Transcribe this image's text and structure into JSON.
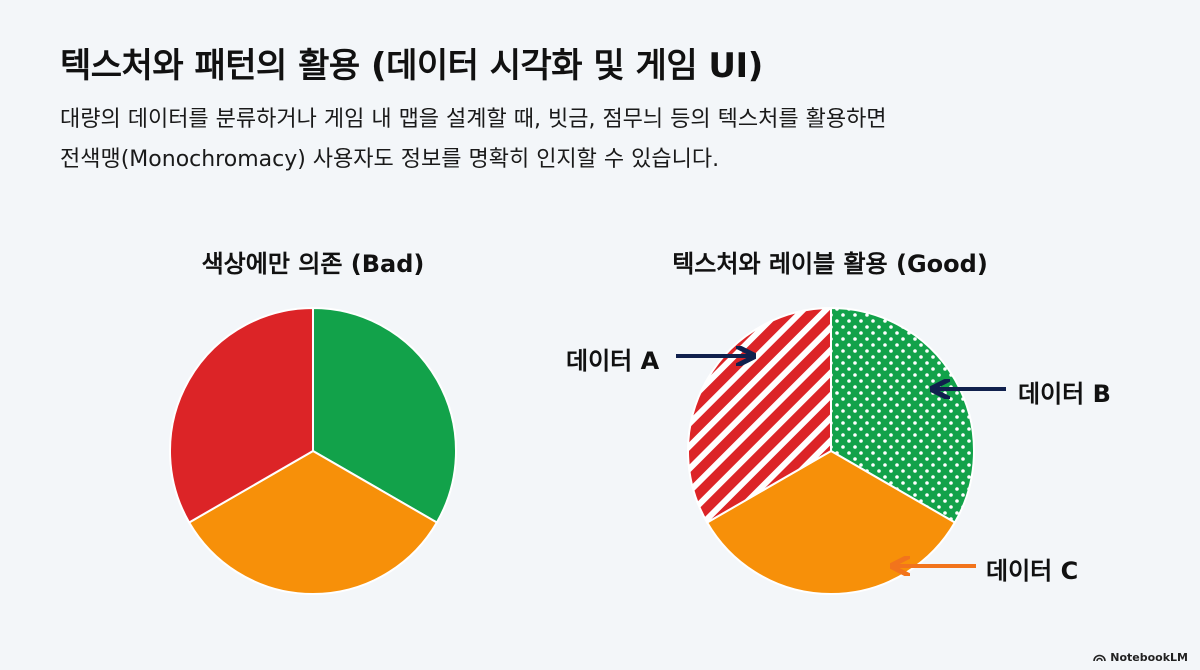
{
  "header": {
    "title": "텍스처와 패턴의 활용 (데이터 시각화 및 게임 UI)",
    "subtitle_line1": "대량의 데이터를 분류하거나 게임 내 맵을 설계할 때, 빗금, 점무늬 등의 텍스처를 활용하면",
    "subtitle_line2": "전색맹(Monochromacy) 사용자도 정보를 명확히 인지할 수 있습니다."
  },
  "chart_data": [
    {
      "type": "pie",
      "title": "색상에만 의존 (Bad)",
      "slices": [
        {
          "value": 33.3,
          "color": "#12a24a",
          "pattern": "none"
        },
        {
          "value": 33.3,
          "color": "#f79009",
          "pattern": "none"
        },
        {
          "value": 33.3,
          "color": "#dc2427",
          "pattern": "none"
        }
      ]
    },
    {
      "type": "pie",
      "title": "텍스처와 레이블 활용 (Good)",
      "slices": [
        {
          "label": "데이터 A",
          "value": 33.3,
          "color": "#dc2427",
          "pattern": "diagonal-stripes"
        },
        {
          "label": "데이터 B",
          "value": 33.3,
          "color": "#12a24a",
          "pattern": "dots"
        },
        {
          "label": "데이터 C",
          "value": 33.3,
          "color": "#f79009",
          "pattern": "none"
        }
      ],
      "arrow_colors": {
        "a": "#10204d",
        "b": "#10204d",
        "c": "#f2741c"
      }
    }
  ],
  "footer": {
    "brand": "NotebookLM"
  }
}
